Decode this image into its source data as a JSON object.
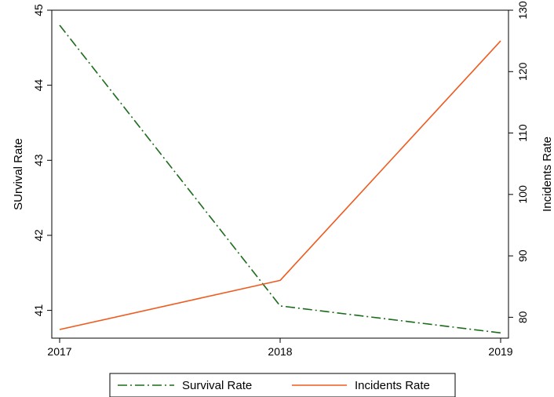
{
  "chart_data": {
    "type": "line",
    "x": [
      "2017",
      "2018",
      "2019"
    ],
    "series": [
      {
        "name": "Survival Rate",
        "axis": "left",
        "values": [
          44.8,
          41.06,
          40.7
        ],
        "color": "#1a6b1a",
        "line_style": "dash-dot"
      },
      {
        "name": "Incidents Rate",
        "axis": "right",
        "values": [
          78.0,
          86.0,
          125.0
        ],
        "color": "#f05a1e",
        "line_style": "solid"
      }
    ],
    "ylabel": "SUrvival Rate",
    "y2label": "Incidents Rate",
    "ylim": [
      40.63,
      45.0
    ],
    "y2lim": [
      76.6,
      130.0
    ],
    "yticks": [
      41,
      42,
      43,
      44,
      45
    ],
    "y2ticks": [
      80,
      90,
      100,
      110,
      120,
      130
    ],
    "grid": false,
    "legend_position": "bottom"
  }
}
